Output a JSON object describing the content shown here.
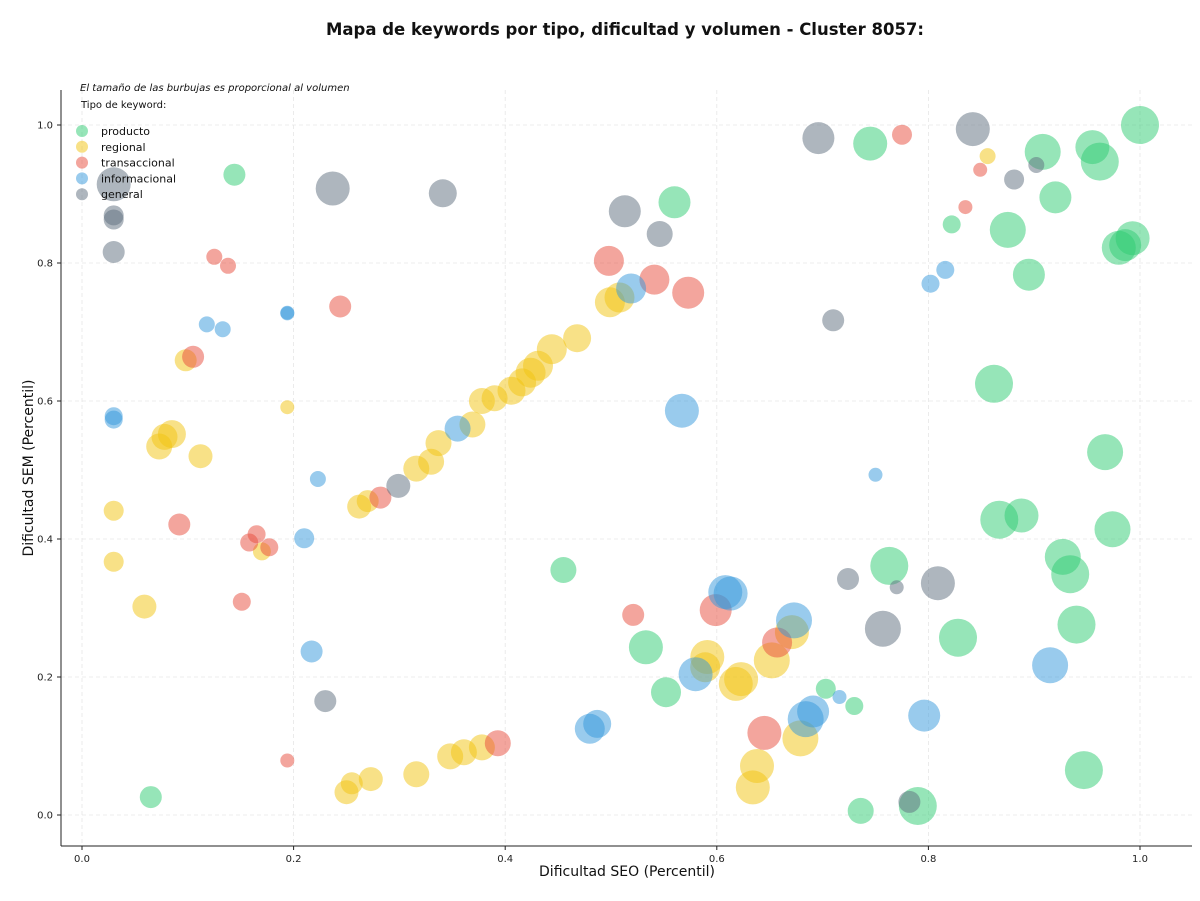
{
  "chart_data": {
    "type": "scatter",
    "title": "Mapa de keywords por tipo, dificultad y volumen - Cluster 8057:",
    "xlabel": "Dificultad SEO (Percentil)",
    "ylabel": "Dificultad SEM (Percentil)",
    "xlim": [
      -0.02,
      1.05
    ],
    "ylim": [
      -0.045,
      1.05
    ],
    "xticks": [
      "0.0",
      "0.2",
      "0.4",
      "0.6",
      "0.8",
      "1.0"
    ],
    "yticks": [
      "0.0",
      "0.2",
      "0.4",
      "0.6",
      "0.8",
      "1.0"
    ],
    "grid": true,
    "legend_placement": "top-left",
    "note": "El tamaño de las burbujas es proporcional al volumen",
    "legend_title": "Tipo de keyword:",
    "series": [
      {
        "name": "producto",
        "color": "#2ecc71",
        "points": [
          [
            0.144,
            0.928,
            11
          ],
          [
            0.065,
            0.026,
            11
          ],
          [
            0.455,
            0.355,
            13
          ],
          [
            0.533,
            0.243,
            17
          ],
          [
            0.552,
            0.178,
            15
          ],
          [
            0.56,
            0.888,
            16
          ],
          [
            0.703,
            0.183,
            10
          ],
          [
            0.73,
            0.158,
            9
          ],
          [
            0.736,
            0.006,
            13
          ],
          [
            0.745,
            0.973,
            17
          ],
          [
            0.763,
            0.361,
            19
          ],
          [
            0.79,
            0.013,
            19
          ],
          [
            0.822,
            0.856,
            9
          ],
          [
            0.828,
            0.257,
            19
          ],
          [
            0.862,
            0.625,
            19
          ],
          [
            0.875,
            0.848,
            18
          ],
          [
            0.867,
            0.428,
            19
          ],
          [
            0.888,
            0.434,
            17
          ],
          [
            0.895,
            0.783,
            16
          ],
          [
            0.908,
            0.961,
            18
          ],
          [
            0.92,
            0.895,
            16
          ],
          [
            0.927,
            0.374,
            18
          ],
          [
            0.934,
            0.349,
            19
          ],
          [
            0.94,
            0.276,
            19
          ],
          [
            0.947,
            0.065,
            19
          ],
          [
            0.955,
            0.968,
            17
          ],
          [
            0.962,
            0.947,
            19
          ],
          [
            0.967,
            0.526,
            18
          ],
          [
            0.974,
            0.414,
            18
          ],
          [
            0.98,
            0.822,
            17
          ],
          [
            0.986,
            0.826,
            16
          ],
          [
            0.993,
            0.836,
            17
          ],
          [
            1.0,
            1.0,
            19
          ]
        ]
      },
      {
        "name": "regional",
        "color": "#f1c40f",
        "points": [
          [
            0.03,
            0.441,
            10
          ],
          [
            0.03,
            0.367,
            10
          ],
          [
            0.059,
            0.302,
            12
          ],
          [
            0.073,
            0.534,
            13
          ],
          [
            0.078,
            0.548,
            13
          ],
          [
            0.085,
            0.552,
            14
          ],
          [
            0.098,
            0.659,
            11
          ],
          [
            0.112,
            0.52,
            12
          ],
          [
            0.17,
            0.382,
            9
          ],
          [
            0.194,
            0.591,
            7
          ],
          [
            0.25,
            0.033,
            12
          ],
          [
            0.255,
            0.046,
            11
          ],
          [
            0.262,
            0.447,
            12
          ],
          [
            0.273,
            0.052,
            12
          ],
          [
            0.27,
            0.455,
            11
          ],
          [
            0.316,
            0.059,
            13
          ],
          [
            0.316,
            0.502,
            13
          ],
          [
            0.33,
            0.512,
            13
          ],
          [
            0.337,
            0.539,
            13
          ],
          [
            0.348,
            0.085,
            13
          ],
          [
            0.361,
            0.091,
            13
          ],
          [
            0.369,
            0.566,
            13
          ],
          [
            0.378,
            0.6,
            13
          ],
          [
            0.378,
            0.098,
            13
          ],
          [
            0.39,
            0.604,
            13
          ],
          [
            0.406,
            0.615,
            14
          ],
          [
            0.416,
            0.627,
            14
          ],
          [
            0.424,
            0.641,
            15
          ],
          [
            0.431,
            0.651,
            15
          ],
          [
            0.444,
            0.675,
            15
          ],
          [
            0.468,
            0.691,
            14
          ],
          [
            0.499,
            0.743,
            15
          ],
          [
            0.508,
            0.75,
            15
          ],
          [
            0.591,
            0.229,
            17
          ],
          [
            0.589,
            0.214,
            15
          ],
          [
            0.618,
            0.19,
            17
          ],
          [
            0.623,
            0.197,
            17
          ],
          [
            0.634,
            0.04,
            17
          ],
          [
            0.638,
            0.071,
            17
          ],
          [
            0.652,
            0.224,
            18
          ],
          [
            0.671,
            0.265,
            17
          ],
          [
            0.679,
            0.111,
            18
          ],
          [
            0.856,
            0.955,
            8
          ]
        ]
      },
      {
        "name": "transaccional",
        "color": "#e74c3c",
        "points": [
          [
            0.092,
            0.421,
            11
          ],
          [
            0.105,
            0.664,
            11
          ],
          [
            0.125,
            0.809,
            8
          ],
          [
            0.138,
            0.796,
            8
          ],
          [
            0.151,
            0.309,
            9
          ],
          [
            0.158,
            0.395,
            9
          ],
          [
            0.165,
            0.407,
            9
          ],
          [
            0.177,
            0.388,
            9
          ],
          [
            0.194,
            0.079,
            7
          ],
          [
            0.244,
            0.737,
            11
          ],
          [
            0.282,
            0.46,
            11
          ],
          [
            0.393,
            0.104,
            13
          ],
          [
            0.498,
            0.803,
            15
          ],
          [
            0.541,
            0.776,
            15
          ],
          [
            0.521,
            0.29,
            11
          ],
          [
            0.573,
            0.757,
            16
          ],
          [
            0.599,
            0.297,
            16
          ],
          [
            0.645,
            0.119,
            17
          ],
          [
            0.657,
            0.25,
            15
          ],
          [
            0.775,
            0.986,
            10
          ],
          [
            0.835,
            0.881,
            7
          ],
          [
            0.849,
            0.935,
            7
          ]
        ]
      },
      {
        "name": "informacional",
        "color": "#3498db",
        "points": [
          [
            0.03,
            0.578,
            9
          ],
          [
            0.03,
            0.573,
            9
          ],
          [
            0.118,
            0.711,
            8
          ],
          [
            0.133,
            0.704,
            8
          ],
          [
            0.194,
            0.728,
            7
          ],
          [
            0.194,
            0.727,
            7
          ],
          [
            0.223,
            0.487,
            8
          ],
          [
            0.21,
            0.401,
            10
          ],
          [
            0.217,
            0.237,
            11
          ],
          [
            0.355,
            0.56,
            13
          ],
          [
            0.48,
            0.125,
            15
          ],
          [
            0.487,
            0.132,
            14
          ],
          [
            0.519,
            0.763,
            15
          ],
          [
            0.567,
            0.586,
            17
          ],
          [
            0.58,
            0.204,
            17
          ],
          [
            0.608,
            0.323,
            17
          ],
          [
            0.613,
            0.321,
            17
          ],
          [
            0.673,
            0.282,
            18
          ],
          [
            0.684,
            0.139,
            18
          ],
          [
            0.691,
            0.15,
            16
          ],
          [
            0.716,
            0.171,
            7
          ],
          [
            0.75,
            0.493,
            7
          ],
          [
            0.796,
            0.144,
            16
          ],
          [
            0.802,
            0.77,
            9
          ],
          [
            0.816,
            0.79,
            9
          ],
          [
            0.915,
            0.217,
            18
          ]
        ]
      },
      {
        "name": "general",
        "color": "#5d6d7e",
        "points": [
          [
            0.03,
            0.914,
            17
          ],
          [
            0.03,
            0.869,
            10
          ],
          [
            0.03,
            0.863,
            10
          ],
          [
            0.03,
            0.816,
            11
          ],
          [
            0.23,
            0.165,
            11
          ],
          [
            0.237,
            0.908,
            17
          ],
          [
            0.341,
            0.901,
            14
          ],
          [
            0.299,
            0.477,
            12
          ],
          [
            0.513,
            0.875,
            16
          ],
          [
            0.546,
            0.842,
            13
          ],
          [
            0.696,
            0.981,
            16
          ],
          [
            0.71,
            0.717,
            11
          ],
          [
            0.724,
            0.342,
            11
          ],
          [
            0.757,
            0.27,
            18
          ],
          [
            0.77,
            0.33,
            7
          ],
          [
            0.782,
            0.019,
            11
          ],
          [
            0.809,
            0.336,
            17
          ],
          [
            0.842,
            0.994,
            17
          ],
          [
            0.881,
            0.921,
            10
          ],
          [
            0.902,
            0.942,
            8
          ]
        ]
      }
    ]
  }
}
